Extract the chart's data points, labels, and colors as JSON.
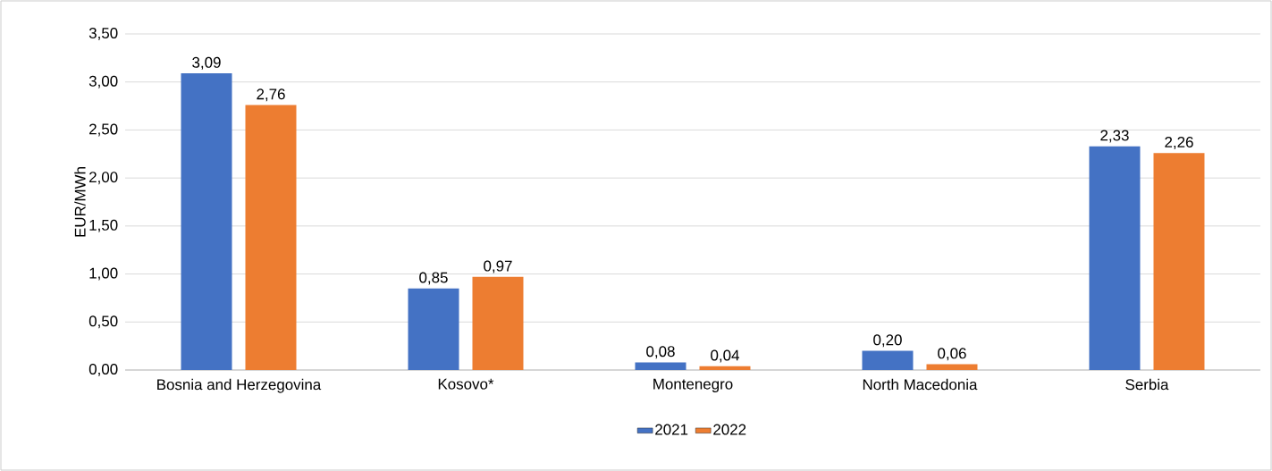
{
  "chart_data": {
    "type": "bar",
    "ylabel": "EUR/MWh",
    "categories": [
      "Bosnia and Herzegovina",
      "Kosovo*",
      "Montenegro",
      "North Macedonia",
      "Serbia"
    ],
    "series": [
      {
        "name": "2021",
        "color": "#4472c4",
        "values": [
          3.09,
          0.85,
          0.08,
          0.2,
          2.33
        ],
        "value_labels": [
          "3,09",
          "0,85",
          "0,08",
          "0,20",
          "2,33"
        ]
      },
      {
        "name": "2022",
        "color": "#ed7d31",
        "values": [
          2.76,
          0.97,
          0.04,
          0.06,
          2.26
        ],
        "value_labels": [
          "2,76",
          "0,97",
          "0,04",
          "0,06",
          "2,26"
        ]
      }
    ],
    "ylim": [
      0,
      3.5
    ],
    "yticks": [
      {
        "value": 0,
        "label": "0,00"
      },
      {
        "value": 0.5,
        "label": "0,50"
      },
      {
        "value": 1,
        "label": "1,00"
      },
      {
        "value": 1.5,
        "label": "1,50"
      },
      {
        "value": 2,
        "label": "2,00"
      },
      {
        "value": 2.5,
        "label": "2,50"
      },
      {
        "value": 3,
        "label": "3,00"
      },
      {
        "value": 3.5,
        "label": "3,50"
      }
    ],
    "grid": "y",
    "legend": "bottom"
  }
}
